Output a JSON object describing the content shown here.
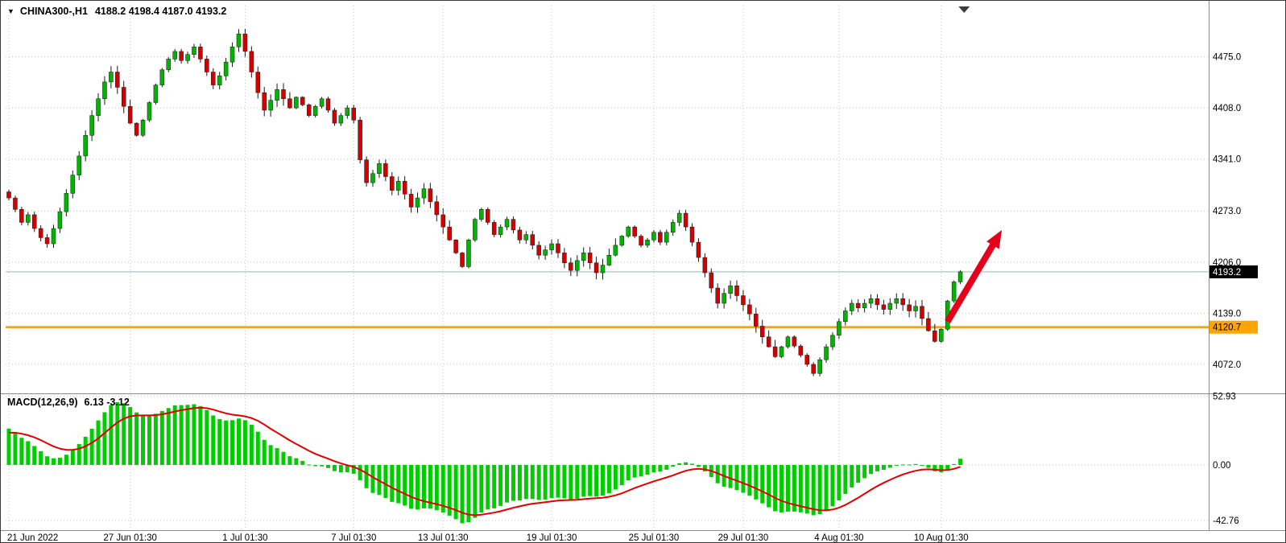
{
  "header": {
    "symbol": "CHINA300-,H1",
    "ohlc": "4188.2 4198.4 4187.0 4193.2"
  },
  "macd_header": {
    "name": "MACD(12,26,9)",
    "values": "6.13 -3.12"
  },
  "price_axis": {
    "labels": [
      "4475.0",
      "4408.0",
      "4341.0",
      "4273.0",
      "4206.0",
      "4139.0",
      "4072.0"
    ],
    "current_price_label": "4193.2",
    "hline_label": "4120.7"
  },
  "macd_axis": {
    "labels": [
      "52.93",
      "0.00",
      "-42.76"
    ]
  },
  "time_axis": {
    "labels": [
      "21 Jun 2022",
      "27 Jun 01:30",
      "1 Jul 01:30",
      "7 Jul 01:30",
      "13 Jul 01:30",
      "19 Jul 01:30",
      "25 Jul 01:30",
      "29 Jul 01:30",
      "4 Aug 01:30",
      "10 Aug 01:30"
    ]
  },
  "colors": {
    "up": "#00b400",
    "down": "#d40000",
    "wick": "#1a1a1a",
    "histogram": "#00cc00",
    "signal": "#e00000",
    "grid": "#c6c6c6",
    "separator": "#8c8c8c",
    "priceline": "#94b7c4",
    "hline": "#ffa500",
    "arrow": "#e3001b",
    "badge_current_bg": "#000000",
    "badge_current_text": "#ffffff",
    "badge_hline_bg": "#ffa500",
    "badge_hline_text": "#000000",
    "axis_text": "#000000",
    "shift_marker": "#3c3c3c"
  },
  "chart_data": {
    "type": "candlestick",
    "symbol": "CHINA300-",
    "timeframe": "H1",
    "ohlc_current": {
      "open": 4188.2,
      "high": 4198.4,
      "low": 4187.0,
      "close": 4193.2
    },
    "ylim": [
      4035,
      4542
    ],
    "y_ticks": [
      4475,
      4408,
      4341,
      4273,
      4206,
      4139,
      4072
    ],
    "x_label_indices": [
      0,
      19,
      37,
      54,
      68,
      85,
      101,
      115,
      130,
      146
    ],
    "current_price": 4193.2,
    "support_line": 4120.7,
    "shift_marker_bar": 149.6,
    "closes": [
      4290,
      4275,
      4258,
      4268,
      4250,
      4238,
      4230,
      4250,
      4272,
      4296,
      4320,
      4345,
      4372,
      4398,
      4420,
      4442,
      4455,
      4435,
      4410,
      4388,
      4372,
      4392,
      4415,
      4438,
      4458,
      4472,
      4482,
      4470,
      4478,
      4488,
      4472,
      4455,
      4438,
      4450,
      4468,
      4488,
      4505,
      4482,
      4455,
      4428,
      4405,
      4418,
      4432,
      4420,
      4408,
      4422,
      4412,
      4398,
      4410,
      4420,
      4405,
      4388,
      4398,
      4408,
      4392,
      4340,
      4310,
      4322,
      4335,
      4318,
      4300,
      4312,
      4295,
      4278,
      4290,
      4302,
      4285,
      4268,
      4252,
      4235,
      4218,
      4200,
      4235,
      4262,
      4275,
      4258,
      4242,
      4252,
      4262,
      4248,
      4235,
      4242,
      4228,
      4215,
      4222,
      4230,
      4218,
      4205,
      4195,
      4208,
      4218,
      4205,
      4192,
      4202,
      4215,
      4228,
      4240,
      4252,
      4240,
      4228,
      4235,
      4245,
      4232,
      4245,
      4258,
      4270,
      4252,
      4232,
      4212,
      4192,
      4172,
      4152,
      4165,
      4175,
      4162,
      4150,
      4138,
      4122,
      4108,
      4095,
      4082,
      4095,
      4108,
      4096,
      4084,
      4072,
      4060,
      4078,
      4095,
      4110,
      4128,
      4142,
      4152,
      4146,
      4152,
      4158,
      4150,
      4144,
      4152,
      4158,
      4150,
      4142,
      4148,
      4132,
      4116,
      4102,
      4118,
      4155,
      4180,
      4193.2
    ],
    "macd": {
      "type": "bar",
      "fast": 12,
      "slow": 26,
      "signal": 9,
      "value": 6.13,
      "signal_value": -3.12,
      "y_ticks": [
        52.93,
        0,
        -42.76
      ],
      "ylim": [
        -49.6,
        53.9
      ],
      "seed": {
        "fast_offset": -3,
        "slow_offset": -33,
        "signal_start": 24
      }
    },
    "annotations": [
      {
        "type": "arrow",
        "from": {
          "bar": 147,
          "price": 4128
        },
        "to": {
          "bar": 155.5,
          "price": 4248
        },
        "color": "#e3001b",
        "width": 8
      }
    ]
  }
}
